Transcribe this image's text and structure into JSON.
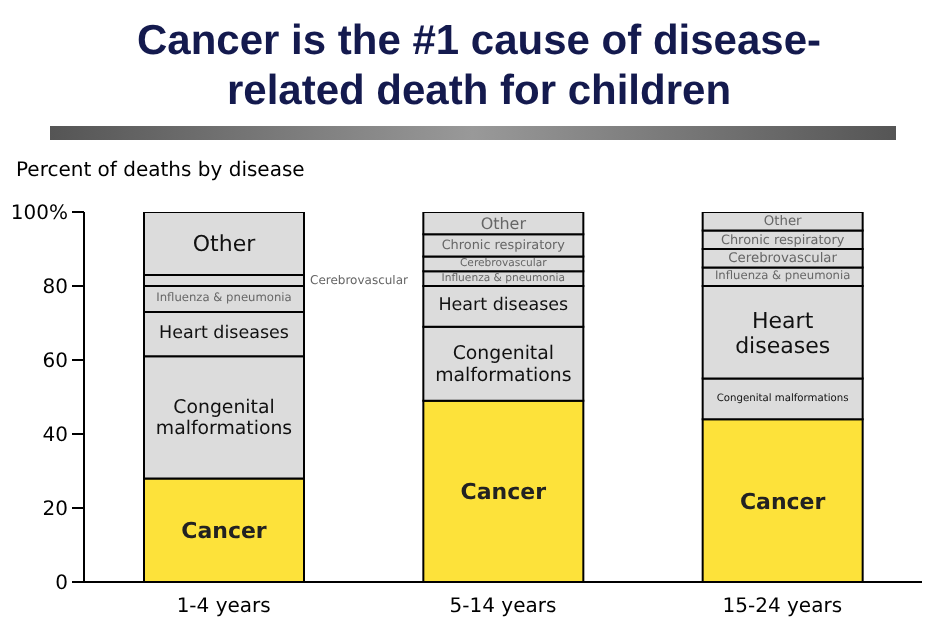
{
  "chart_data": {
    "type": "bar",
    "title": "Cancer is the #1 cause of disease-related death for children",
    "ylabel": "Percent of deaths by disease",
    "categories": [
      "1-4 years",
      "5-14 years",
      "15-24 years"
    ],
    "stacked": true,
    "legend": false,
    "grid": false,
    "ylim": [
      0,
      100
    ],
    "yticks": [
      0,
      20,
      40,
      60,
      80,
      {
        "value": 100,
        "label": "100%"
      }
    ],
    "series": [
      {
        "name": "Cancer",
        "color": "#fde23a",
        "values": [
          28,
          49,
          44
        ]
      },
      {
        "name": "Congenital malformations",
        "color": "#dcdcdc",
        "values": [
          33,
          20,
          11
        ]
      },
      {
        "name": "Heart diseases",
        "color": "#dcdcdc",
        "values": [
          12,
          11,
          25
        ]
      },
      {
        "name": "Influenza & pneumonia",
        "color": "#dcdcdc",
        "values": [
          7,
          4,
          5
        ]
      },
      {
        "name": "Cerebrovascular",
        "color": "#dcdcdc",
        "values": [
          3,
          4,
          5
        ]
      },
      {
        "name": "Chronic respiratory",
        "color": "#dcdcdc",
        "values": [
          null,
          6,
          5
        ]
      },
      {
        "name": "Other",
        "color": "#dcdcdc",
        "values": [
          17,
          6,
          5
        ]
      }
    ]
  }
}
